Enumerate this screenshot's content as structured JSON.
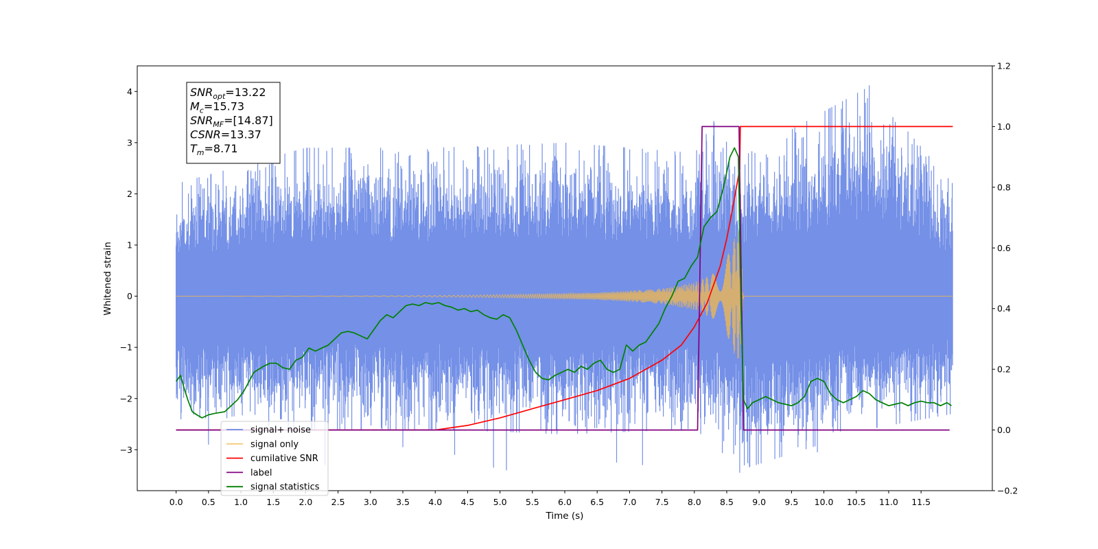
{
  "chart_data": {
    "type": "line",
    "xlabel": "Time (s)",
    "ylabel_left": "Whitened strain",
    "ylabel_right": "",
    "xlim": [
      -0.6,
      12.6
    ],
    "ylim_left": [
      -3.8,
      4.5
    ],
    "ylim_right": [
      -0.2,
      1.2
    ],
    "x_ticks": [
      0.0,
      0.5,
      1.0,
      1.5,
      2.0,
      2.5,
      3.0,
      3.5,
      4.0,
      4.5,
      5.0,
      5.5,
      6.0,
      6.5,
      7.0,
      7.5,
      8.0,
      8.5,
      9.0,
      9.5,
      10.0,
      10.5,
      11.0,
      11.5
    ],
    "x_tick_labels": [
      "0.0",
      "0.5",
      "1.0",
      "1.5",
      "2.0",
      "2.5",
      "3.0",
      "3.5",
      "4.0",
      "4.5",
      "5.0",
      "5.5",
      "6.0",
      "6.5",
      "7.0",
      "7.5",
      "8.0",
      "8.5",
      "9.0",
      "9.5",
      "10.0",
      "10.5",
      "11.0",
      "11.5"
    ],
    "y_left_ticks": [
      -3,
      -2,
      -1,
      0,
      1,
      2,
      3,
      4
    ],
    "y_left_tick_labels": [
      "−3",
      "−2",
      "−1",
      "0",
      "1",
      "2",
      "3",
      "4"
    ],
    "y_right_ticks": [
      -0.2,
      0.0,
      0.2,
      0.4,
      0.6,
      0.8,
      1.0,
      1.2
    ],
    "y_right_tick_labels": [
      "−0.2",
      "0.0",
      "0.2",
      "0.4",
      "0.6",
      "0.8",
      "1.0",
      "1.2"
    ],
    "grid": false,
    "legend_position": "lower-left",
    "annotation": {
      "lines": [
        {
          "main": "SNR",
          "sub": "opt",
          "value": "=13.22"
        },
        {
          "main": "M",
          "sub": "c",
          "value": "=15.73"
        },
        {
          "main": "SNR",
          "sub": "MF",
          "value": "=[14.87]"
        },
        {
          "main": "CSNR",
          "sub": "",
          "value": "=13.37"
        },
        {
          "main": "T",
          "sub": "m",
          "value": "=8.71"
        }
      ]
    },
    "series": [
      {
        "name": "signal+ noise",
        "axis": "left",
        "color": "#6d8ae6",
        "kind": "noise_band",
        "x_range": [
          0.0,
          11.99
        ],
        "envelope": [
          {
            "x": 0.0,
            "low": -2.4,
            "high": 2.2
          },
          {
            "x": 2.0,
            "low": -2.6,
            "high": 2.9
          },
          {
            "x": 4.0,
            "low": -2.6,
            "high": 2.9
          },
          {
            "x": 6.0,
            "low": -2.7,
            "high": 3.0
          },
          {
            "x": 8.0,
            "low": -2.6,
            "high": 2.8
          },
          {
            "x": 8.3,
            "low": -2.9,
            "high": 3.4
          },
          {
            "x": 8.7,
            "low": -3.4,
            "high": 2.7
          },
          {
            "x": 10.7,
            "low": -2.6,
            "high": 4.1
          },
          {
            "x": 11.99,
            "low": -2.3,
            "high": 2.2
          }
        ],
        "spikes": [
          {
            "x": 0.5,
            "y": -2.9
          },
          {
            "x": 2.3,
            "y": -3.3
          },
          {
            "x": 3.5,
            "y": -2.95
          },
          {
            "x": 4.3,
            "y": -3.1
          },
          {
            "x": 4.9,
            "y": -3.35
          },
          {
            "x": 5.1,
            "y": -3.4
          },
          {
            "x": 6.8,
            "y": -3.25
          },
          {
            "x": 7.2,
            "y": -3.3
          },
          {
            "x": 8.3,
            "y": 3.42
          },
          {
            "x": 8.7,
            "y": -3.45
          },
          {
            "x": 9.6,
            "y": -2.95
          },
          {
            "x": 9.9,
            "y": -3.05
          },
          {
            "x": 10.7,
            "y": 4.12
          }
        ]
      },
      {
        "name": "signal only",
        "axis": "left",
        "color": "#f5b94a",
        "kind": "chirp",
        "amplitude_points": [
          {
            "x": 0.0,
            "amp": 0.0
          },
          {
            "x": 3.0,
            "amp": 0.005
          },
          {
            "x": 4.5,
            "amp": 0.02
          },
          {
            "x": 5.5,
            "amp": 0.04
          },
          {
            "x": 6.5,
            "amp": 0.07
          },
          {
            "x": 7.5,
            "amp": 0.15
          },
          {
            "x": 8.0,
            "amp": 0.27
          },
          {
            "x": 8.3,
            "amp": 0.45
          },
          {
            "x": 8.5,
            "amp": 0.75
          },
          {
            "x": 8.65,
            "amp": 1.25
          },
          {
            "x": 8.71,
            "amp": 1.3
          },
          {
            "x": 8.76,
            "amp": 0.0
          },
          {
            "x": 11.99,
            "amp": 0.0
          }
        ]
      },
      {
        "name": "cumilative SNR",
        "axis": "right",
        "color": "#ff0000",
        "x": [
          0.0,
          3.5,
          4.0,
          4.5,
          5.0,
          5.5,
          6.0,
          6.5,
          7.0,
          7.5,
          7.8,
          8.0,
          8.2,
          8.4,
          8.5,
          8.6,
          8.65,
          8.7,
          8.71,
          8.72,
          11.99
        ],
        "y": [
          0.0,
          0.0,
          0.0,
          0.015,
          0.04,
          0.07,
          0.1,
          0.13,
          0.17,
          0.23,
          0.28,
          0.34,
          0.42,
          0.54,
          0.63,
          0.74,
          0.8,
          0.86,
          1.0,
          1.0,
          1.0
        ]
      },
      {
        "name": "label",
        "axis": "right",
        "color": "#800080",
        "x": [
          0.0,
          8.05,
          8.12,
          8.69,
          8.76,
          11.94
        ],
        "y": [
          0.0,
          0.0,
          1.0,
          1.0,
          0.0,
          0.0
        ]
      },
      {
        "name": "signal statistics",
        "axis": "right",
        "color": "#008000",
        "x": [
          0.0,
          0.07,
          0.12,
          0.18,
          0.25,
          0.32,
          0.4,
          0.5,
          0.6,
          0.75,
          0.85,
          0.95,
          1.05,
          1.2,
          1.35,
          1.45,
          1.55,
          1.65,
          1.75,
          1.85,
          1.95,
          2.05,
          2.15,
          2.25,
          2.35,
          2.45,
          2.55,
          2.65,
          2.75,
          2.85,
          2.95,
          3.05,
          3.15,
          3.25,
          3.35,
          3.45,
          3.55,
          3.65,
          3.75,
          3.85,
          3.95,
          4.05,
          4.15,
          4.25,
          4.35,
          4.45,
          4.55,
          4.65,
          4.75,
          4.85,
          4.95,
          5.05,
          5.15,
          5.25,
          5.35,
          5.45,
          5.55,
          5.65,
          5.75,
          5.85,
          5.95,
          6.05,
          6.15,
          6.25,
          6.35,
          6.45,
          6.55,
          6.65,
          6.75,
          6.85,
          6.95,
          7.05,
          7.15,
          7.25,
          7.35,
          7.45,
          7.55,
          7.65,
          7.75,
          7.85,
          7.95,
          8.05,
          8.15,
          8.25,
          8.35,
          8.45,
          8.55,
          8.62,
          8.68,
          8.72,
          8.76,
          8.82,
          8.9,
          9.0,
          9.1,
          9.2,
          9.3,
          9.4,
          9.5,
          9.6,
          9.7,
          9.8,
          9.9,
          10.0,
          10.1,
          10.2,
          10.3,
          10.4,
          10.5,
          10.6,
          10.7,
          10.8,
          10.9,
          11.0,
          11.1,
          11.2,
          11.3,
          11.4,
          11.5,
          11.6,
          11.7,
          11.8,
          11.9,
          11.97
        ],
        "y": [
          0.16,
          0.18,
          0.14,
          0.1,
          0.06,
          0.05,
          0.04,
          0.05,
          0.055,
          0.06,
          0.08,
          0.1,
          0.13,
          0.19,
          0.21,
          0.22,
          0.22,
          0.205,
          0.2,
          0.23,
          0.24,
          0.27,
          0.26,
          0.27,
          0.28,
          0.3,
          0.32,
          0.325,
          0.32,
          0.31,
          0.3,
          0.33,
          0.36,
          0.38,
          0.37,
          0.39,
          0.41,
          0.415,
          0.41,
          0.42,
          0.415,
          0.42,
          0.41,
          0.405,
          0.395,
          0.4,
          0.39,
          0.395,
          0.38,
          0.37,
          0.365,
          0.38,
          0.37,
          0.33,
          0.28,
          0.23,
          0.19,
          0.17,
          0.165,
          0.18,
          0.19,
          0.2,
          0.19,
          0.21,
          0.2,
          0.22,
          0.23,
          0.2,
          0.19,
          0.2,
          0.28,
          0.26,
          0.28,
          0.29,
          0.32,
          0.35,
          0.4,
          0.44,
          0.49,
          0.5,
          0.54,
          0.57,
          0.67,
          0.7,
          0.72,
          0.8,
          0.9,
          0.93,
          0.9,
          0.4,
          0.1,
          0.07,
          0.09,
          0.1,
          0.11,
          0.1,
          0.09,
          0.085,
          0.08,
          0.09,
          0.11,
          0.16,
          0.17,
          0.16,
          0.12,
          0.1,
          0.09,
          0.1,
          0.11,
          0.13,
          0.12,
          0.1,
          0.09,
          0.08,
          0.085,
          0.09,
          0.08,
          0.09,
          0.095,
          0.09,
          0.09,
          0.08,
          0.09,
          0.08
        ]
      }
    ]
  }
}
